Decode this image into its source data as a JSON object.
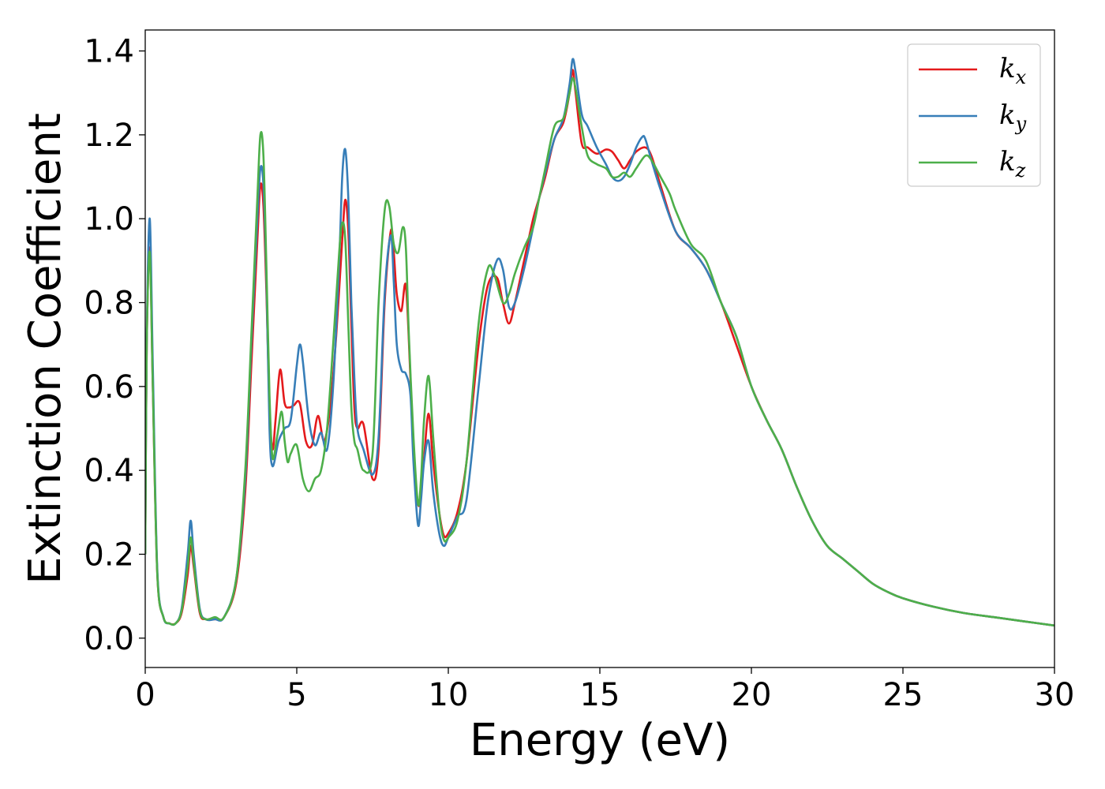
{
  "chart_data": {
    "type": "line",
    "xlabel": "Energy (eV)",
    "ylabel": "Extinction Coefficient",
    "xlim": [
      0,
      30
    ],
    "ylim": [
      -0.07,
      1.45
    ],
    "xticks": [
      0,
      5,
      10,
      15,
      20,
      25,
      30
    ],
    "yticks": [
      0.0,
      0.2,
      0.4,
      0.6,
      0.8,
      1.0,
      1.2,
      1.4
    ],
    "xtick_labels": [
      "0",
      "5",
      "10",
      "15",
      "20",
      "25",
      "30"
    ],
    "ytick_labels": [
      "0.0",
      "0.2",
      "0.4",
      "0.6",
      "0.8",
      "1.0",
      "1.2",
      "1.4"
    ],
    "grid": false,
    "legend_position": "top-right",
    "series": [
      {
        "name": "k_x",
        "label_main": "k",
        "label_sub": "x",
        "color": "#e41a1c",
        "x": [
          0,
          0.05,
          0.15,
          0.25,
          0.4,
          0.6,
          0.8,
          1.0,
          1.2,
          1.4,
          1.5,
          1.6,
          1.8,
          2.0,
          2.3,
          2.6,
          3.0,
          3.3,
          3.5,
          3.7,
          3.8,
          3.9,
          4.0,
          4.1,
          4.2,
          4.3,
          4.45,
          4.6,
          4.75,
          4.9,
          5.1,
          5.3,
          5.5,
          5.7,
          5.9,
          6.1,
          6.3,
          6.5,
          6.6,
          6.7,
          6.8,
          6.9,
          7.0,
          7.2,
          7.5,
          7.7,
          7.9,
          8.1,
          8.2,
          8.3,
          8.45,
          8.6,
          8.75,
          8.85,
          9.0,
          9.1,
          9.2,
          9.35,
          9.5,
          9.7,
          9.85,
          10.0,
          10.3,
          10.6,
          11.0,
          11.3,
          11.6,
          11.8,
          12.0,
          12.2,
          12.5,
          12.8,
          13.0,
          13.2,
          13.5,
          13.8,
          14.0,
          14.1,
          14.2,
          14.4,
          14.6,
          14.9,
          15.2,
          15.4,
          15.6,
          15.8,
          16.0,
          16.2,
          16.5,
          16.7,
          17.0,
          17.5,
          18.0,
          18.5,
          19.0,
          19.5,
          20.0,
          20.5,
          21.0,
          21.5,
          22.0,
          22.5,
          23.0,
          23.5,
          24.0,
          24.5,
          25.0,
          26.0,
          27.0,
          28.0,
          29.0,
          30.0
        ],
        "y": [
          0.2,
          0.7,
          0.93,
          0.6,
          0.15,
          0.05,
          0.035,
          0.035,
          0.06,
          0.15,
          0.22,
          0.17,
          0.06,
          0.045,
          0.045,
          0.05,
          0.13,
          0.35,
          0.65,
          0.95,
          1.08,
          1.03,
          0.82,
          0.55,
          0.45,
          0.52,
          0.64,
          0.56,
          0.55,
          0.555,
          0.56,
          0.47,
          0.46,
          0.53,
          0.47,
          0.55,
          0.72,
          0.95,
          1.045,
          0.97,
          0.75,
          0.55,
          0.5,
          0.51,
          0.38,
          0.45,
          0.8,
          0.97,
          0.92,
          0.82,
          0.78,
          0.84,
          0.62,
          0.45,
          0.32,
          0.35,
          0.43,
          0.535,
          0.42,
          0.3,
          0.245,
          0.25,
          0.3,
          0.42,
          0.7,
          0.84,
          0.86,
          0.8,
          0.75,
          0.8,
          0.9,
          1.0,
          1.05,
          1.1,
          1.19,
          1.23,
          1.3,
          1.355,
          1.3,
          1.18,
          1.17,
          1.155,
          1.165,
          1.16,
          1.14,
          1.12,
          1.14,
          1.16,
          1.17,
          1.15,
          1.08,
          0.97,
          0.93,
          0.88,
          0.8,
          0.7,
          0.6,
          0.52,
          0.45,
          0.36,
          0.28,
          0.22,
          0.19,
          0.16,
          0.13,
          0.11,
          0.095,
          0.075,
          0.06,
          0.05,
          0.04,
          0.03
        ]
      },
      {
        "name": "k_y",
        "label_main": "k",
        "label_sub": "y",
        "color": "#377eb8",
        "x": [
          0,
          0.05,
          0.15,
          0.25,
          0.4,
          0.6,
          0.8,
          1.0,
          1.2,
          1.4,
          1.5,
          1.6,
          1.8,
          2.0,
          2.3,
          2.6,
          3.0,
          3.3,
          3.5,
          3.7,
          3.8,
          3.9,
          4.0,
          4.1,
          4.2,
          4.4,
          4.6,
          4.8,
          5.0,
          5.1,
          5.2,
          5.4,
          5.6,
          5.8,
          6.0,
          6.2,
          6.4,
          6.5,
          6.6,
          6.7,
          6.8,
          6.9,
          7.0,
          7.2,
          7.5,
          7.7,
          7.9,
          8.1,
          8.2,
          8.3,
          8.45,
          8.6,
          8.75,
          8.85,
          9.0,
          9.1,
          9.2,
          9.35,
          9.5,
          9.7,
          9.85,
          10.0,
          10.3,
          10.6,
          11.0,
          11.3,
          11.6,
          11.8,
          12.0,
          12.2,
          12.5,
          12.8,
          13.0,
          13.2,
          13.5,
          13.8,
          14.0,
          14.1,
          14.2,
          14.4,
          14.6,
          14.9,
          15.2,
          15.4,
          15.6,
          15.8,
          16.0,
          16.2,
          16.4,
          16.5,
          16.7,
          17.0,
          17.5,
          18.0,
          18.5,
          19.0,
          19.5,
          20.0,
          20.5,
          21.0,
          21.5,
          22.0,
          22.5,
          23.0,
          23.5,
          24.0,
          24.5,
          25.0,
          26.0,
          27.0,
          28.0,
          29.0,
          30.0
        ],
        "y": [
          0.2,
          0.72,
          1.0,
          0.65,
          0.16,
          0.05,
          0.035,
          0.035,
          0.07,
          0.2,
          0.28,
          0.2,
          0.07,
          0.045,
          0.045,
          0.05,
          0.14,
          0.38,
          0.7,
          1.0,
          1.12,
          1.08,
          0.85,
          0.5,
          0.41,
          0.47,
          0.5,
          0.52,
          0.65,
          0.7,
          0.66,
          0.52,
          0.46,
          0.49,
          0.45,
          0.6,
          0.9,
          1.1,
          1.165,
          1.05,
          0.8,
          0.62,
          0.5,
          0.45,
          0.39,
          0.48,
          0.82,
          0.96,
          0.85,
          0.7,
          0.64,
          0.63,
          0.58,
          0.42,
          0.27,
          0.33,
          0.42,
          0.47,
          0.35,
          0.25,
          0.22,
          0.24,
          0.29,
          0.33,
          0.6,
          0.8,
          0.9,
          0.88,
          0.79,
          0.8,
          0.88,
          0.98,
          1.05,
          1.11,
          1.19,
          1.24,
          1.32,
          1.38,
          1.35,
          1.25,
          1.22,
          1.17,
          1.13,
          1.1,
          1.09,
          1.1,
          1.13,
          1.17,
          1.195,
          1.19,
          1.14,
          1.07,
          0.97,
          0.93,
          0.88,
          0.8,
          0.72,
          0.6,
          0.52,
          0.45,
          0.36,
          0.28,
          0.22,
          0.19,
          0.16,
          0.13,
          0.11,
          0.095,
          0.075,
          0.06,
          0.05,
          0.04,
          0.03
        ]
      },
      {
        "name": "k_z",
        "label_main": "k",
        "label_sub": "z",
        "color": "#4daf4a",
        "x": [
          0,
          0.05,
          0.15,
          0.25,
          0.4,
          0.6,
          0.8,
          1.0,
          1.2,
          1.4,
          1.5,
          1.6,
          1.8,
          2.0,
          2.3,
          2.6,
          3.0,
          3.3,
          3.5,
          3.7,
          3.8,
          3.9,
          4.0,
          4.1,
          4.2,
          4.35,
          4.5,
          4.6,
          4.7,
          4.8,
          5.0,
          5.2,
          5.4,
          5.6,
          5.8,
          6.0,
          6.2,
          6.4,
          6.5,
          6.6,
          6.7,
          6.8,
          6.9,
          7.0,
          7.2,
          7.5,
          7.7,
          7.9,
          8.05,
          8.2,
          8.35,
          8.5,
          8.6,
          8.7,
          8.85,
          9.0,
          9.1,
          9.2,
          9.35,
          9.5,
          9.7,
          9.85,
          10.0,
          10.3,
          10.6,
          11.0,
          11.3,
          11.5,
          11.8,
          12.0,
          12.2,
          12.5,
          12.8,
          13.0,
          13.2,
          13.5,
          13.8,
          14.0,
          14.1,
          14.2,
          14.4,
          14.6,
          14.9,
          15.2,
          15.4,
          15.6,
          15.8,
          16.0,
          16.2,
          16.5,
          16.7,
          17.0,
          17.3,
          17.5,
          18.0,
          18.5,
          19.0,
          19.5,
          20.0,
          20.5,
          21.0,
          21.5,
          22.0,
          22.5,
          23.0,
          23.5,
          24.0,
          24.5,
          25.0,
          26.0,
          27.0,
          28.0,
          29.0,
          30.0
        ],
        "y": [
          0.2,
          0.7,
          0.92,
          0.6,
          0.15,
          0.05,
          0.035,
          0.035,
          0.065,
          0.17,
          0.24,
          0.18,
          0.065,
          0.045,
          0.05,
          0.05,
          0.14,
          0.4,
          0.72,
          1.05,
          1.2,
          1.15,
          0.88,
          0.58,
          0.43,
          0.48,
          0.54,
          0.47,
          0.42,
          0.44,
          0.46,
          0.38,
          0.35,
          0.38,
          0.4,
          0.5,
          0.7,
          0.92,
          0.99,
          0.95,
          0.75,
          0.55,
          0.47,
          0.45,
          0.4,
          0.44,
          0.8,
          1.02,
          1.03,
          0.94,
          0.92,
          0.98,
          0.93,
          0.72,
          0.48,
          0.32,
          0.38,
          0.52,
          0.625,
          0.48,
          0.3,
          0.235,
          0.24,
          0.28,
          0.42,
          0.75,
          0.88,
          0.87,
          0.8,
          0.82,
          0.87,
          0.93,
          0.98,
          1.05,
          1.12,
          1.22,
          1.24,
          1.3,
          1.335,
          1.31,
          1.22,
          1.15,
          1.13,
          1.12,
          1.1,
          1.1,
          1.11,
          1.1,
          1.12,
          1.15,
          1.14,
          1.1,
          1.06,
          1.02,
          0.94,
          0.9,
          0.8,
          0.72,
          0.6,
          0.52,
          0.45,
          0.36,
          0.28,
          0.22,
          0.19,
          0.16,
          0.13,
          0.11,
          0.095,
          0.075,
          0.06,
          0.05,
          0.04,
          0.03
        ]
      }
    ]
  }
}
